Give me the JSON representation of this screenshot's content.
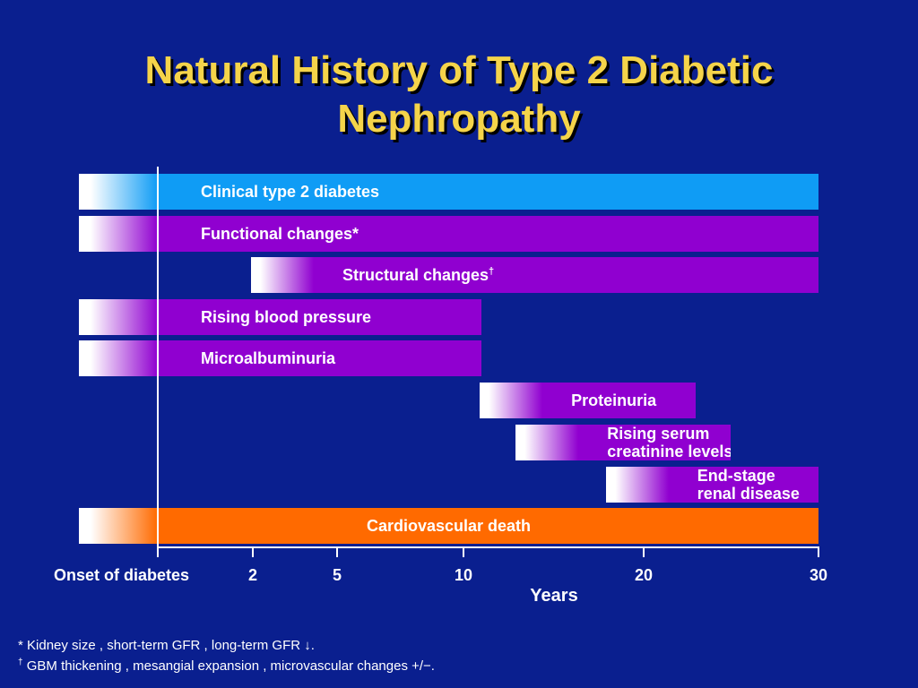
{
  "slide": {
    "title_line1": "Natural History of Type 2 Diabetic",
    "title_line2": "Nephropathy"
  },
  "colors": {
    "background": "#0a1f8f",
    "title": "#f5d44a",
    "blue_bar": "#0f9cf5",
    "purple_bar": "#9000d0",
    "orange_bar": "#ff6a00"
  },
  "chart_data": {
    "type": "timeline",
    "xlabel": "Years",
    "x_ticks": [
      {
        "value": 0,
        "label": "Onset of diabetes"
      },
      {
        "value": 2,
        "label": "2"
      },
      {
        "value": 5,
        "label": "5"
      },
      {
        "value": 10,
        "label": "10"
      },
      {
        "value": 20,
        "label": "20"
      },
      {
        "value": 30,
        "label": "30"
      }
    ],
    "bars": [
      {
        "label_lines": [
          "Clinical type 2 diabetes"
        ],
        "mark": "",
        "start": 0,
        "end": 30,
        "color": "blue"
      },
      {
        "label_lines": [
          "Functional changes"
        ],
        "mark": "*",
        "start": 0,
        "end": 30,
        "color": "purple"
      },
      {
        "label_lines": [
          "Structural changes"
        ],
        "mark": "†",
        "start": 2,
        "end": 30,
        "color": "purple"
      },
      {
        "label_lines": [
          "Rising blood pressure"
        ],
        "mark": "",
        "start": 0,
        "end": 11,
        "color": "purple"
      },
      {
        "label_lines": [
          "Microalbuminuria"
        ],
        "mark": "",
        "start": 0,
        "end": 11,
        "color": "purple"
      },
      {
        "label_lines": [
          "Proteinuria"
        ],
        "mark": "",
        "start": 11,
        "end": 23,
        "color": "purple"
      },
      {
        "label_lines": [
          "Rising serum",
          "creatinine levels"
        ],
        "mark": "",
        "start": 13,
        "end": 25,
        "color": "purple"
      },
      {
        "label_lines": [
          "End-stage",
          "renal disease"
        ],
        "mark": "",
        "start": 18,
        "end": 30,
        "color": "purple"
      },
      {
        "label_lines": [
          "Cardiovascular death"
        ],
        "mark": "",
        "start": 0,
        "end": 30,
        "color": "orange"
      }
    ]
  },
  "footnotes": {
    "note1_mark": "*",
    "note1_text": " Kidney size , short-term GFR , long-term GFR ↓.",
    "note2_mark": "†",
    "note2_text": " GBM thickening , mesangial expansion , microvascular changes +/−."
  }
}
